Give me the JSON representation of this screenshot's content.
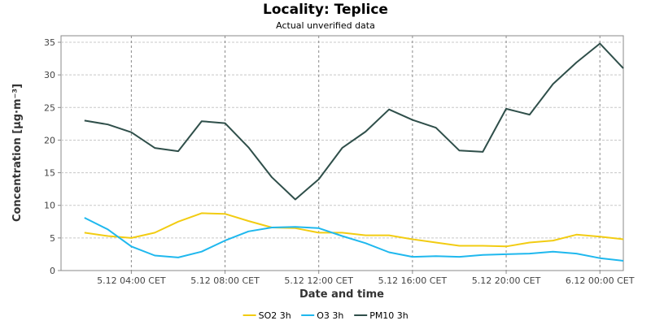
{
  "chart_data": {
    "type": "line",
    "title": "Locality: Teplice",
    "subtitle": "Actual unverified data",
    "xlabel": "Date and time",
    "ylabel": "Concentration [µg·m⁻³]",
    "ylim": [
      0,
      36
    ],
    "yticks": [
      0,
      5,
      10,
      15,
      20,
      25,
      30,
      35
    ],
    "xlim": [
      1,
      25
    ],
    "x": [
      2,
      3,
      4,
      5,
      6,
      7,
      8,
      9,
      10,
      11,
      12,
      13,
      14,
      15,
      16,
      17,
      18,
      19,
      20,
      21,
      22,
      23,
      24,
      25
    ],
    "xticks": [
      {
        "x": 4,
        "label": "5.12 04:00 CET"
      },
      {
        "x": 8,
        "label": "5.12 08:00 CET"
      },
      {
        "x": 12,
        "label": "5.12 12:00 CET"
      },
      {
        "x": 16,
        "label": "5.12 16:00 CET"
      },
      {
        "x": 20,
        "label": "5.12 20:00 CET"
      },
      {
        "x": 24,
        "label": "6.12 00:00 CET"
      }
    ],
    "grid": true,
    "legend_position": "bottom",
    "series": [
      {
        "name": "SO2 3h",
        "color": "#f2cc12",
        "values": [
          5.8,
          5.3,
          5.0,
          5.8,
          7.5,
          8.8,
          8.7,
          7.6,
          6.6,
          6.5,
          5.8,
          5.8,
          5.4,
          5.4,
          4.8,
          4.3,
          3.8,
          3.8,
          3.7,
          4.3,
          4.6,
          5.5,
          5.2,
          4.8
        ]
      },
      {
        "name": "O3 3h",
        "color": "#1fb8ee",
        "values": [
          8.1,
          6.3,
          3.7,
          2.3,
          2.0,
          2.9,
          4.6,
          6.0,
          6.6,
          6.7,
          6.5,
          5.3,
          4.2,
          2.8,
          2.1,
          2.2,
          2.1,
          2.4,
          2.5,
          2.6,
          2.9,
          2.6,
          1.9,
          1.5
        ]
      },
      {
        "name": "PM10 3h",
        "color": "#2f4f4a",
        "values": [
          23.0,
          22.4,
          21.2,
          18.8,
          18.3,
          22.9,
          22.6,
          18.9,
          14.3,
          10.9,
          14.0,
          18.8,
          21.3,
          24.7,
          23.1,
          21.9,
          18.4,
          18.2,
          24.8,
          23.9,
          28.6,
          31.9,
          34.8,
          31.0
        ]
      }
    ]
  }
}
